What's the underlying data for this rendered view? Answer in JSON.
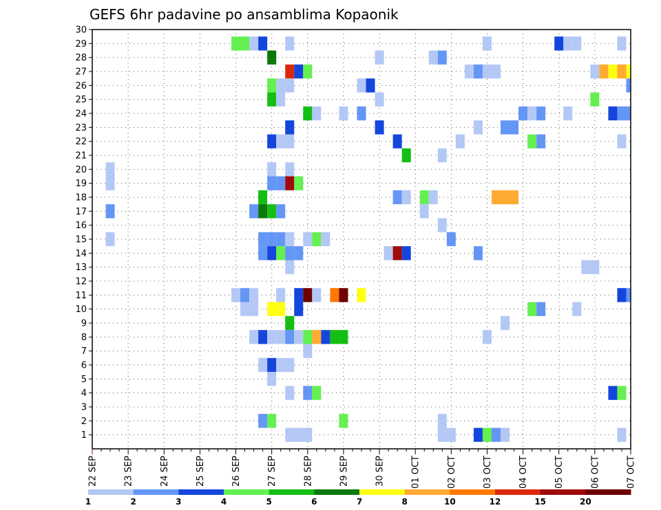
{
  "chart_data": {
    "type": "heatmap",
    "title": "GEFS 6hr padavine po ansamblima Kopaonik",
    "xlabel": "",
    "ylabel": "",
    "x_tick_labels": [
      "22 SEP",
      "23 SEP",
      "24 SEP",
      "25 SEP",
      "26 SEP",
      "27 SEP",
      "28 SEP",
      "29 SEP",
      "30 SEP",
      "01 OCT",
      "02 OCT",
      "03 OCT",
      "04 OCT",
      "05 OCT",
      "06 OCT",
      "07 OCT"
    ],
    "y_tick_labels": [
      "1",
      "2",
      "3",
      "4",
      "5",
      "6",
      "7",
      "8",
      "9",
      "10",
      "11",
      "12",
      "13",
      "14",
      "15",
      "16",
      "17",
      "18",
      "19",
      "20",
      "21",
      "22",
      "23",
      "24",
      "25",
      "26",
      "27",
      "28",
      "29",
      "30"
    ],
    "x_unit": "6-hour step from 22 SEP 00Z",
    "xlim": [
      0,
      60
    ],
    "ylim": [
      0,
      30
    ],
    "grid": true,
    "legend": {
      "placement": "bottom",
      "bounds": [
        "1",
        "2",
        "3",
        "4",
        "5",
        "6",
        "7",
        "8",
        "10",
        "12",
        "15",
        "20"
      ],
      "colors": [
        "#b4c8f5",
        "#6496f5",
        "#1446dc",
        "#64f050",
        "#14be14",
        "#0a780a",
        "#ffff14",
        "#ffaa32",
        "#ff7800",
        "#dc280a",
        "#a00a0a",
        "#6e0000"
      ]
    },
    "cells": [
      [
        16,
        29,
        3
      ],
      [
        17,
        29,
        3
      ],
      [
        18,
        29,
        0
      ],
      [
        19,
        29,
        2
      ],
      [
        22,
        29,
        0
      ],
      [
        44,
        29,
        0
      ],
      [
        52,
        29,
        2
      ],
      [
        53,
        29,
        0
      ],
      [
        54,
        29,
        0
      ],
      [
        59,
        29,
        0
      ],
      [
        20,
        28,
        5
      ],
      [
        32,
        28,
        0
      ],
      [
        38,
        28,
        0
      ],
      [
        39,
        28,
        1
      ],
      [
        22,
        27,
        9
      ],
      [
        23,
        27,
        2
      ],
      [
        24,
        27,
        3
      ],
      [
        42,
        27,
        0
      ],
      [
        43,
        27,
        1
      ],
      [
        44,
        27,
        0
      ],
      [
        45,
        27,
        0
      ],
      [
        56,
        27,
        0
      ],
      [
        57,
        27,
        7
      ],
      [
        58,
        27,
        6
      ],
      [
        59,
        27,
        7
      ],
      [
        60,
        27,
        6
      ],
      [
        20,
        26,
        3
      ],
      [
        21,
        26,
        0
      ],
      [
        22,
        26,
        0
      ],
      [
        30,
        26,
        0
      ],
      [
        31,
        26,
        2
      ],
      [
        60,
        26,
        1
      ],
      [
        20,
        25,
        4
      ],
      [
        21,
        25,
        0
      ],
      [
        32,
        25,
        0
      ],
      [
        56,
        25,
        3
      ],
      [
        24,
        24,
        4
      ],
      [
        25,
        24,
        0
      ],
      [
        28,
        24,
        0
      ],
      [
        30,
        24,
        1
      ],
      [
        48,
        24,
        1
      ],
      [
        49,
        24,
        0
      ],
      [
        50,
        24,
        1
      ],
      [
        53,
        24,
        0
      ],
      [
        58,
        24,
        2
      ],
      [
        59,
        24,
        1
      ],
      [
        60,
        24,
        1
      ],
      [
        22,
        23,
        2
      ],
      [
        32,
        23,
        2
      ],
      [
        43,
        23,
        0
      ],
      [
        46,
        23,
        1
      ],
      [
        47,
        23,
        1
      ],
      [
        20,
        22,
        2
      ],
      [
        21,
        22,
        0
      ],
      [
        22,
        22,
        0
      ],
      [
        34,
        22,
        2
      ],
      [
        41,
        22,
        0
      ],
      [
        49,
        22,
        3
      ],
      [
        50,
        22,
        1
      ],
      [
        59,
        22,
        0
      ],
      [
        35,
        21,
        4
      ],
      [
        39,
        21,
        0
      ],
      [
        2,
        20,
        0
      ],
      [
        20,
        20,
        0
      ],
      [
        22,
        20,
        0
      ],
      [
        2,
        19,
        0
      ],
      [
        20,
        19,
        1
      ],
      [
        21,
        19,
        1
      ],
      [
        22,
        19,
        10
      ],
      [
        23,
        19,
        3
      ],
      [
        19,
        18,
        4
      ],
      [
        34,
        18,
        1
      ],
      [
        35,
        18,
        0
      ],
      [
        37,
        18,
        3
      ],
      [
        38,
        18,
        0
      ],
      [
        45,
        18,
        7
      ],
      [
        46,
        18,
        7
      ],
      [
        47,
        18,
        7
      ],
      [
        2,
        17,
        1
      ],
      [
        18,
        17,
        1
      ],
      [
        19,
        17,
        5
      ],
      [
        20,
        17,
        4
      ],
      [
        21,
        17,
        1
      ],
      [
        37,
        17,
        0
      ],
      [
        39,
        16,
        0
      ],
      [
        2,
        15,
        0
      ],
      [
        19,
        15,
        1
      ],
      [
        20,
        15,
        1
      ],
      [
        21,
        15,
        1
      ],
      [
        22,
        15,
        0
      ],
      [
        24,
        15,
        0
      ],
      [
        25,
        15,
        3
      ],
      [
        26,
        15,
        0
      ],
      [
        40,
        15,
        1
      ],
      [
        19,
        14,
        1
      ],
      [
        20,
        14,
        2
      ],
      [
        21,
        14,
        3
      ],
      [
        22,
        14,
        1
      ],
      [
        23,
        14,
        1
      ],
      [
        33,
        14,
        0
      ],
      [
        34,
        14,
        10
      ],
      [
        35,
        14,
        2
      ],
      [
        43,
        14,
        1
      ],
      [
        22,
        13,
        0
      ],
      [
        55,
        13,
        0
      ],
      [
        56,
        13,
        0
      ],
      [
        16,
        11,
        0
      ],
      [
        17,
        11,
        1
      ],
      [
        18,
        11,
        0
      ],
      [
        21,
        11,
        0
      ],
      [
        23,
        11,
        2
      ],
      [
        24,
        11,
        11
      ],
      [
        25,
        11,
        0
      ],
      [
        27,
        11,
        8
      ],
      [
        28,
        11,
        11
      ],
      [
        30,
        11,
        6
      ],
      [
        59,
        11,
        2
      ],
      [
        60,
        11,
        1
      ],
      [
        17,
        10,
        0
      ],
      [
        18,
        10,
        0
      ],
      [
        20,
        10,
        6
      ],
      [
        21,
        10,
        6
      ],
      [
        23,
        10,
        2
      ],
      [
        49,
        10,
        3
      ],
      [
        50,
        10,
        1
      ],
      [
        54,
        10,
        0
      ],
      [
        22,
        9,
        4
      ],
      [
        46,
        9,
        0
      ],
      [
        18,
        8,
        0
      ],
      [
        19,
        8,
        2
      ],
      [
        20,
        8,
        0
      ],
      [
        21,
        8,
        0
      ],
      [
        22,
        8,
        1
      ],
      [
        23,
        8,
        0
      ],
      [
        24,
        8,
        3
      ],
      [
        25,
        8,
        7
      ],
      [
        26,
        8,
        2
      ],
      [
        27,
        8,
        4
      ],
      [
        28,
        8,
        4
      ],
      [
        44,
        8,
        0
      ],
      [
        24,
        7,
        0
      ],
      [
        19,
        6,
        0
      ],
      [
        20,
        6,
        2
      ],
      [
        21,
        6,
        0
      ],
      [
        22,
        6,
        0
      ],
      [
        20,
        5,
        0
      ],
      [
        22,
        4,
        0
      ],
      [
        24,
        4,
        1
      ],
      [
        25,
        4,
        3
      ],
      [
        58,
        4,
        2
      ],
      [
        59,
        4,
        3
      ],
      [
        19,
        2,
        1
      ],
      [
        20,
        2,
        3
      ],
      [
        28,
        2,
        3
      ],
      [
        39,
        2,
        0
      ],
      [
        22,
        1,
        0
      ],
      [
        23,
        1,
        0
      ],
      [
        24,
        1,
        0
      ],
      [
        39,
        1,
        0
      ],
      [
        40,
        1,
        0
      ],
      [
        43,
        1,
        2
      ],
      [
        44,
        1,
        3
      ],
      [
        45,
        1,
        1
      ],
      [
        46,
        1,
        0
      ],
      [
        59,
        1,
        0
      ]
    ]
  }
}
